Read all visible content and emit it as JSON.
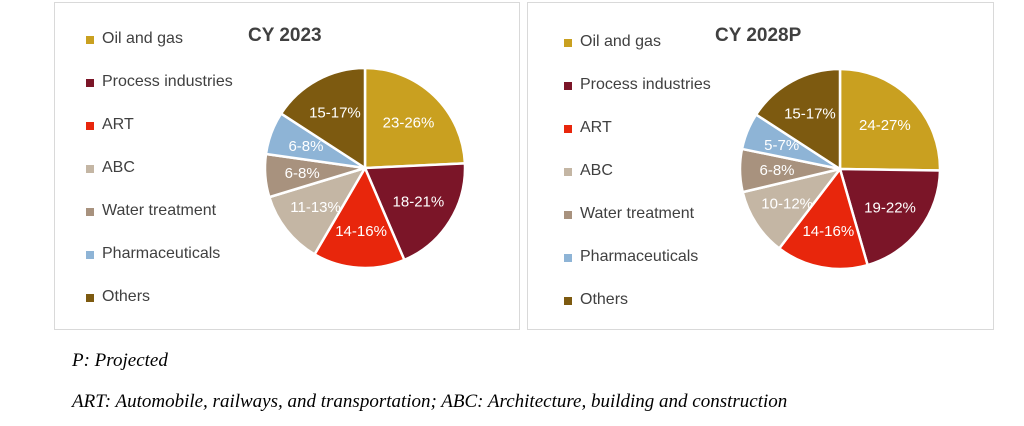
{
  "chart_data": [
    {
      "type": "pie",
      "title": "CY 2023",
      "legend_position": "left",
      "slices": [
        {
          "name": "Oil and gas",
          "label": "23-26%",
          "value": 24.5,
          "color": "#c9a020"
        },
        {
          "name": "Process industries",
          "label": "18-21%",
          "value": 19.5,
          "color": "#7b1528"
        },
        {
          "name": "ART",
          "label": "14-16%",
          "value": 15,
          "color": "#e8260c"
        },
        {
          "name": "ABC",
          "label": "11-13%",
          "value": 12,
          "color": "#c4b6a4"
        },
        {
          "name": "Water treatment",
          "label": "6-8%",
          "value": 7,
          "color": "#a8927e"
        },
        {
          "name": "Pharmaceuticals",
          "label": "6-8%",
          "value": 7,
          "color": "#8eb4d6"
        },
        {
          "name": "Others",
          "label": "15-17%",
          "value": 16,
          "color": "#7d5a10"
        }
      ]
    },
    {
      "type": "pie",
      "title": "CY 2028P",
      "legend_position": "left",
      "slices": [
        {
          "name": "Oil and gas",
          "label": "24-27%",
          "value": 25.5,
          "color": "#c9a020"
        },
        {
          "name": "Process industries",
          "label": "19-22%",
          "value": 20.5,
          "color": "#7b1528"
        },
        {
          "name": "ART",
          "label": "14-16%",
          "value": 15,
          "color": "#e8260c"
        },
        {
          "name": "ABC",
          "label": "10-12%",
          "value": 11,
          "color": "#c4b6a4"
        },
        {
          "name": "Water treatment",
          "label": "6-8%",
          "value": 7,
          "color": "#a8927e"
        },
        {
          "name": "Pharmaceuticals",
          "label": "5-7%",
          "value": 6,
          "color": "#8eb4d6"
        },
        {
          "name": "Others",
          "label": "15-17%",
          "value": 16,
          "color": "#7d5a10"
        }
      ]
    }
  ],
  "notes": {
    "projected": "P: Projected",
    "abbreviations": "ART: Automobile, railways, and transportation; ABC: Architecture, building and construction"
  }
}
